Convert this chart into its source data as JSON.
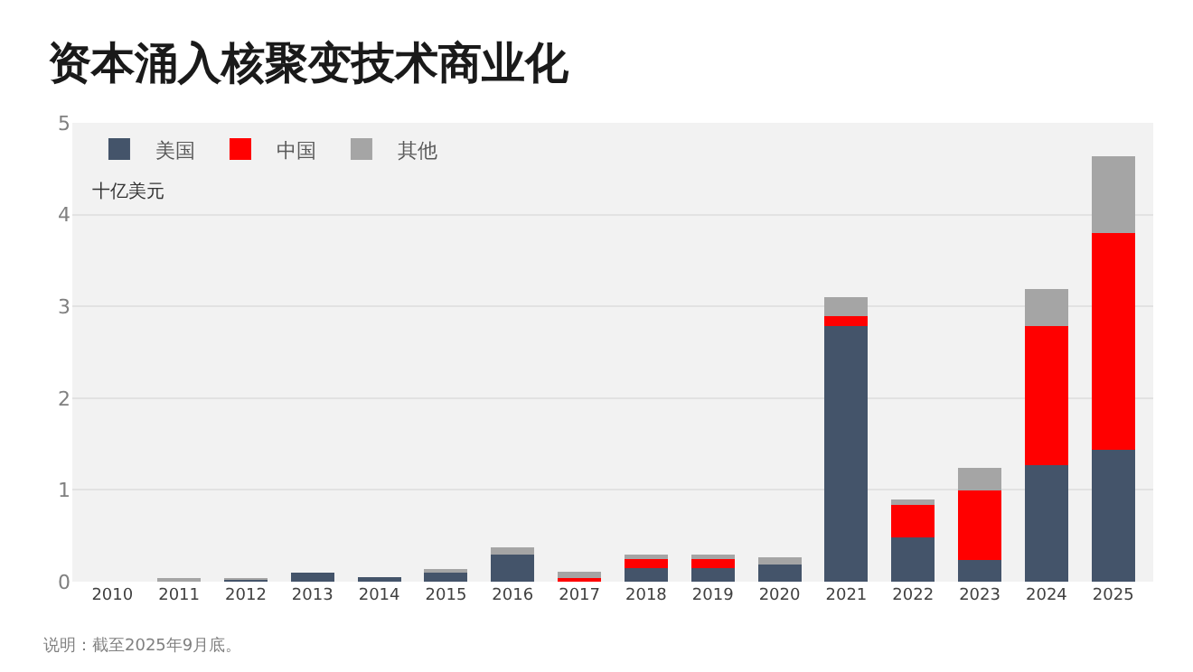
{
  "chart_data": {
    "type": "bar",
    "stacked": true,
    "title": "资本涌入核聚变技术商业化",
    "ylabel": "十亿美元",
    "categories": [
      "2010",
      "2011",
      "2012",
      "2013",
      "2014",
      "2015",
      "2016",
      "2017",
      "2018",
      "2019",
      "2020",
      "2021",
      "2022",
      "2023",
      "2024",
      "2025"
    ],
    "series": [
      {
        "name": "美国",
        "color": "#44546a",
        "values": [
          0,
          0,
          0.02,
          0.1,
          0.05,
          0.1,
          0.3,
          0,
          0.15,
          0.15,
          0.19,
          2.79,
          0.48,
          0.24,
          1.27,
          1.44
        ]
      },
      {
        "name": "中国",
        "color": "#ff0000",
        "values": [
          0,
          0,
          0,
          0,
          0,
          0,
          0,
          0.04,
          0.1,
          0.1,
          0,
          0.1,
          0.36,
          0.75,
          1.52,
          2.36
        ]
      },
      {
        "name": "其他",
        "color": "#a5a5a5",
        "values": [
          0,
          0.02,
          0.01,
          0,
          0,
          0.04,
          0.07,
          0.07,
          0.05,
          0.05,
          0.08,
          0.21,
          0.06,
          0.25,
          0.4,
          0.84
        ]
      }
    ],
    "ylim": [
      0,
      5
    ],
    "yticks": [
      0,
      1,
      2,
      3,
      4,
      5
    ],
    "grid": "y",
    "legend": "top left",
    "annotations": [
      "说明：截至2025年9月底。"
    ]
  }
}
